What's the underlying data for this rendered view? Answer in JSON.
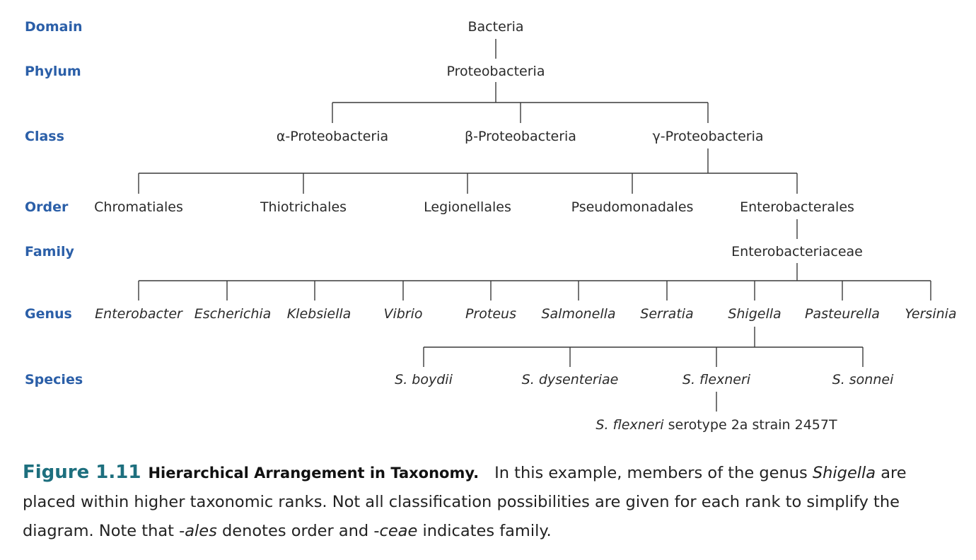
{
  "ranks": {
    "domain": "Domain",
    "phylum": "Phylum",
    "class": "Class",
    "order": "Order",
    "family": "Family",
    "genus": "Genus",
    "species": "Species"
  },
  "tree": {
    "domain": "Bacteria",
    "phylum": "Proteobacteria",
    "classes": [
      "α-Proteobacteria",
      "β-Proteobacteria",
      "γ-Proteobacteria"
    ],
    "orders": [
      "Chromatiales",
      "Thiotrichales",
      "Legionellales",
      "Pseudomonadales",
      "Enterobacterales"
    ],
    "family": "Enterobacteriaceae",
    "genera": [
      "Enterobacter",
      "Escherichia",
      "Klebsiella",
      "Vibrio",
      "Proteus",
      "Salmonella",
      "Serratia",
      "Shigella",
      "Pasteurella",
      "Yersinia"
    ],
    "species": [
      "S. boydii",
      "S. dysenteriae",
      "S. flexneri",
      "S. sonnei"
    ],
    "strain": {
      "name": "S. flexneri",
      "detail": " serotype 2a strain 2457T"
    }
  },
  "caption": {
    "label": "Figure 1.11",
    "title": "Hierarchical Arrangement in Taxonomy.",
    "t1": "In this example, members of the genus ",
    "e1": "Shigella",
    "t2": " are placed within higher taxonomic ranks. Not all classification possibilities are given for each rank to simplify the diagram. Note that -",
    "e2": "ales",
    "t3": " denotes order and -",
    "e3": "ceae",
    "t4": " indicates family."
  }
}
